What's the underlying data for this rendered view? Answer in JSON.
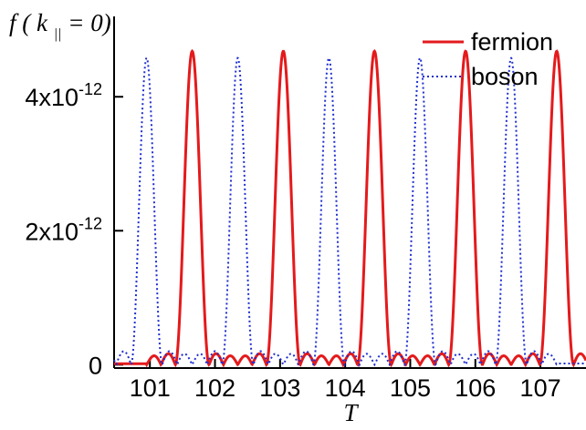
{
  "chart_data": {
    "type": "line",
    "title": "",
    "xlabel": "T",
    "ylabel": {
      "prefix": "f",
      "open": " (",
      "k": "k",
      "sub": "||",
      "rest": "= 0)"
    },
    "xlim": [
      100.45,
      107.7
    ],
    "ylim": [
      -5e-14,
      5.2e-12
    ],
    "x_ticks": [
      101,
      102,
      103,
      104,
      105,
      106,
      107
    ],
    "x_tick_labels": [
      "101",
      "102",
      "103",
      "104",
      "105",
      "106",
      "107"
    ],
    "y_ticks": [
      {
        "value": 0,
        "base": "0",
        "exp": ""
      },
      {
        "value": 2e-12,
        "base": "2x10",
        "exp": "-12"
      },
      {
        "value": 4e-12,
        "base": "4x10",
        "exp": "-12"
      }
    ],
    "grid": false,
    "legend_position": "top-right",
    "series": [
      {
        "name": "fermion",
        "color": "#e41a1c",
        "style": "solid",
        "peak_height": 4.68e-12,
        "peak_centers": [
          101.65,
          103.05,
          104.45,
          105.85,
          107.25
        ],
        "peak_half_width": 0.26,
        "side_lobe": 1.8e-13
      },
      {
        "name": "boson",
        "color": "#1f2fd0",
        "style": "dotted",
        "peak_height": 4.58e-12,
        "peak_centers": [
          100.95,
          102.35,
          103.75,
          105.15,
          106.55
        ],
        "peak_half_width": 0.24,
        "side_lobe": 2.2e-13
      }
    ]
  }
}
